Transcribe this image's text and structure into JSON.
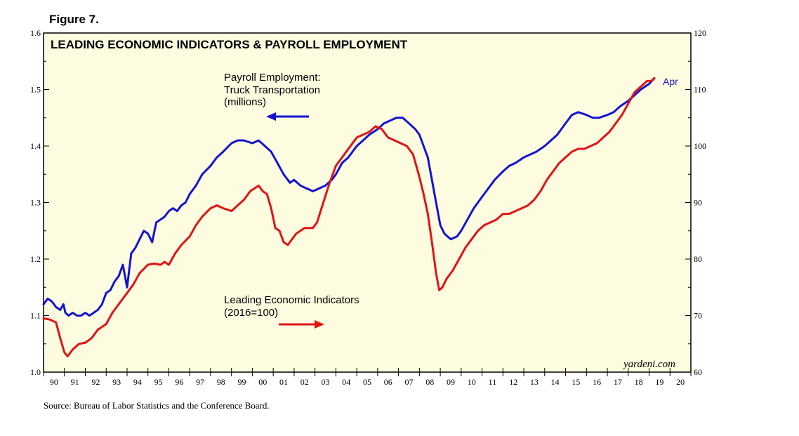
{
  "figure_label": "Figure 7.",
  "source": "Source: Bureau of Labor Statistics and the Conference Board.",
  "brand": "yardeni.com",
  "colors": {
    "payroll": "#1414d2",
    "lei": "#e11414",
    "plot_bg": "#fdfce1"
  },
  "chart_data": {
    "type": "line",
    "title": "LEADING ECONOMIC INDICATORS & PAYROLL EMPLOYMENT",
    "x_tick_labels": [
      "90",
      "91",
      "92",
      "93",
      "94",
      "95",
      "96",
      "97",
      "98",
      "99",
      "00",
      "01",
      "02",
      "03",
      "04",
      "05",
      "06",
      "07",
      "08",
      "09",
      "10",
      "11",
      "12",
      "13",
      "14",
      "15",
      "16",
      "17",
      "18",
      "19",
      "20"
    ],
    "x_range": [
      1990,
      2021
    ],
    "y_left": {
      "range": [
        1.0,
        1.6
      ],
      "ticks": [
        "1.0",
        "1.1",
        "1.2",
        "1.3",
        "1.4",
        "1.5",
        "1.6"
      ],
      "series": "Payroll Employment"
    },
    "y_right": {
      "range": [
        60,
        120
      ],
      "ticks": [
        "60",
        "70",
        "80",
        "90",
        "100",
        "110",
        "120"
      ],
      "series": "Leading Economic Indicators"
    },
    "series": [
      {
        "name": "Payroll Employment",
        "axis": "left",
        "label_lines": [
          "Payroll Employment:",
          "Truck Transportation",
          "(millions)"
        ],
        "end_label": "Apr",
        "x": [
          1990.0,
          1990.2,
          1990.4,
          1990.6,
          1990.8,
          1990.95,
          1991.05,
          1991.2,
          1991.4,
          1991.6,
          1991.8,
          1992.0,
          1992.2,
          1992.4,
          1992.6,
          1992.8,
          1993.0,
          1993.2,
          1993.4,
          1993.6,
          1993.8,
          1994.0,
          1994.2,
          1994.4,
          1994.6,
          1994.8,
          1995.0,
          1995.2,
          1995.4,
          1995.6,
          1995.8,
          1996.0,
          1996.2,
          1996.4,
          1996.6,
          1996.8,
          1997.0,
          1997.3,
          1997.6,
          1998.0,
          1998.3,
          1998.6,
          1999.0,
          1999.3,
          1999.6,
          2000.0,
          2000.3,
          2000.6,
          2000.9,
          2001.2,
          2001.5,
          2001.8,
          2002.0,
          2002.3,
          2002.6,
          2002.9,
          2003.2,
          2003.5,
          2003.8,
          2004.0,
          2004.3,
          2004.6,
          2005.0,
          2005.3,
          2005.6,
          2006.0,
          2006.3,
          2006.6,
          2006.9,
          2007.2,
          2007.5,
          2007.8,
          2008.0,
          2008.2,
          2008.4,
          2008.6,
          2008.8,
          2009.0,
          2009.2,
          2009.5,
          2009.8,
          2010.0,
          2010.3,
          2010.6,
          2011.0,
          2011.3,
          2011.6,
          2012.0,
          2012.3,
          2012.6,
          2013.0,
          2013.3,
          2013.6,
          2014.0,
          2014.3,
          2014.6,
          2015.0,
          2015.3,
          2015.6,
          2016.0,
          2016.3,
          2016.6,
          2017.0,
          2017.3,
          2017.6,
          2018.0,
          2018.3,
          2018.6,
          2019.0,
          2019.25
        ],
        "values": [
          1.12,
          1.13,
          1.125,
          1.115,
          1.11,
          1.12,
          1.105,
          1.1,
          1.105,
          1.1,
          1.1,
          1.105,
          1.1,
          1.105,
          1.11,
          1.12,
          1.14,
          1.145,
          1.16,
          1.17,
          1.19,
          1.15,
          1.21,
          1.22,
          1.235,
          1.25,
          1.245,
          1.23,
          1.265,
          1.27,
          1.275,
          1.285,
          1.29,
          1.285,
          1.295,
          1.3,
          1.315,
          1.33,
          1.35,
          1.365,
          1.38,
          1.39,
          1.405,
          1.41,
          1.41,
          1.405,
          1.41,
          1.4,
          1.39,
          1.37,
          1.35,
          1.335,
          1.34,
          1.33,
          1.325,
          1.32,
          1.325,
          1.33,
          1.34,
          1.35,
          1.37,
          1.38,
          1.4,
          1.41,
          1.42,
          1.43,
          1.44,
          1.445,
          1.45,
          1.45,
          1.44,
          1.43,
          1.42,
          1.4,
          1.38,
          1.34,
          1.3,
          1.26,
          1.245,
          1.235,
          1.24,
          1.25,
          1.27,
          1.29,
          1.31,
          1.325,
          1.34,
          1.355,
          1.365,
          1.37,
          1.38,
          1.385,
          1.39,
          1.4,
          1.41,
          1.42,
          1.44,
          1.455,
          1.46,
          1.455,
          1.45,
          1.45,
          1.455,
          1.46,
          1.47,
          1.48,
          1.49,
          1.5,
          1.51,
          1.52
        ]
      },
      {
        "name": "Leading Economic Indicators",
        "axis": "right",
        "label_lines": [
          "Leading Economic Indicators",
          "(2016=100)"
        ],
        "x": [
          1990.0,
          1990.3,
          1990.6,
          1990.8,
          1991.0,
          1991.15,
          1991.4,
          1991.7,
          1992.0,
          1992.3,
          1992.6,
          1993.0,
          1993.3,
          1993.6,
          1994.0,
          1994.3,
          1994.6,
          1995.0,
          1995.3,
          1995.6,
          1995.8,
          1996.0,
          1996.3,
          1996.6,
          1997.0,
          1997.3,
          1997.6,
          1998.0,
          1998.3,
          1998.6,
          1999.0,
          1999.3,
          1999.6,
          1999.9,
          2000.1,
          2000.3,
          2000.5,
          2000.7,
          2000.9,
          2001.1,
          2001.3,
          2001.5,
          2001.7,
          2001.9,
          2002.1,
          2002.3,
          2002.5,
          2002.7,
          2002.9,
          2003.1,
          2003.4,
          2003.7,
          2004.0,
          2004.3,
          2004.6,
          2005.0,
          2005.3,
          2005.6,
          2005.9,
          2006.2,
          2006.5,
          2006.8,
          2007.1,
          2007.4,
          2007.7,
          2008.0,
          2008.2,
          2008.4,
          2008.6,
          2008.8,
          2008.95,
          2009.1,
          2009.3,
          2009.6,
          2009.9,
          2010.2,
          2010.5,
          2010.8,
          2011.1,
          2011.4,
          2011.7,
          2012.0,
          2012.3,
          2012.6,
          2012.9,
          2013.2,
          2013.5,
          2013.8,
          2014.1,
          2014.4,
          2014.7,
          2015.0,
          2015.3,
          2015.6,
          2015.9,
          2016.2,
          2016.5,
          2016.8,
          2017.1,
          2017.4,
          2017.7,
          2018.0,
          2018.3,
          2018.6,
          2018.9,
          2019.1,
          2019.25
        ],
        "values": [
          69.5,
          69.3,
          68.8,
          66.0,
          63.5,
          62.8,
          64.0,
          65.0,
          65.2,
          66.0,
          67.5,
          68.5,
          70.5,
          72.0,
          74.0,
          75.5,
          77.5,
          79.0,
          79.2,
          79.0,
          79.5,
          79.0,
          81.0,
          82.5,
          84.0,
          86.0,
          87.5,
          89.0,
          89.5,
          89.0,
          88.5,
          89.5,
          90.5,
          92.0,
          92.5,
          93.0,
          92.0,
          91.5,
          89.0,
          85.5,
          85.0,
          83.0,
          82.5,
          83.5,
          84.5,
          85.0,
          85.5,
          85.5,
          85.5,
          86.5,
          90.0,
          93.5,
          96.5,
          98.0,
          99.5,
          101.5,
          102.0,
          102.5,
          103.5,
          103.0,
          101.5,
          101.0,
          100.5,
          100.0,
          98.5,
          94.5,
          91.5,
          88.0,
          83.0,
          77.5,
          74.5,
          75.0,
          76.5,
          78.0,
          80.0,
          82.0,
          83.5,
          85.0,
          86.0,
          86.5,
          87.0,
          88.0,
          88.0,
          88.5,
          89.0,
          89.5,
          90.5,
          92.0,
          94.0,
          95.5,
          97.0,
          98.0,
          99.0,
          99.5,
          99.5,
          100.0,
          100.5,
          101.5,
          102.5,
          104.0,
          105.5,
          107.5,
          109.5,
          110.5,
          111.5,
          111.5,
          112.0
        ]
      }
    ]
  }
}
